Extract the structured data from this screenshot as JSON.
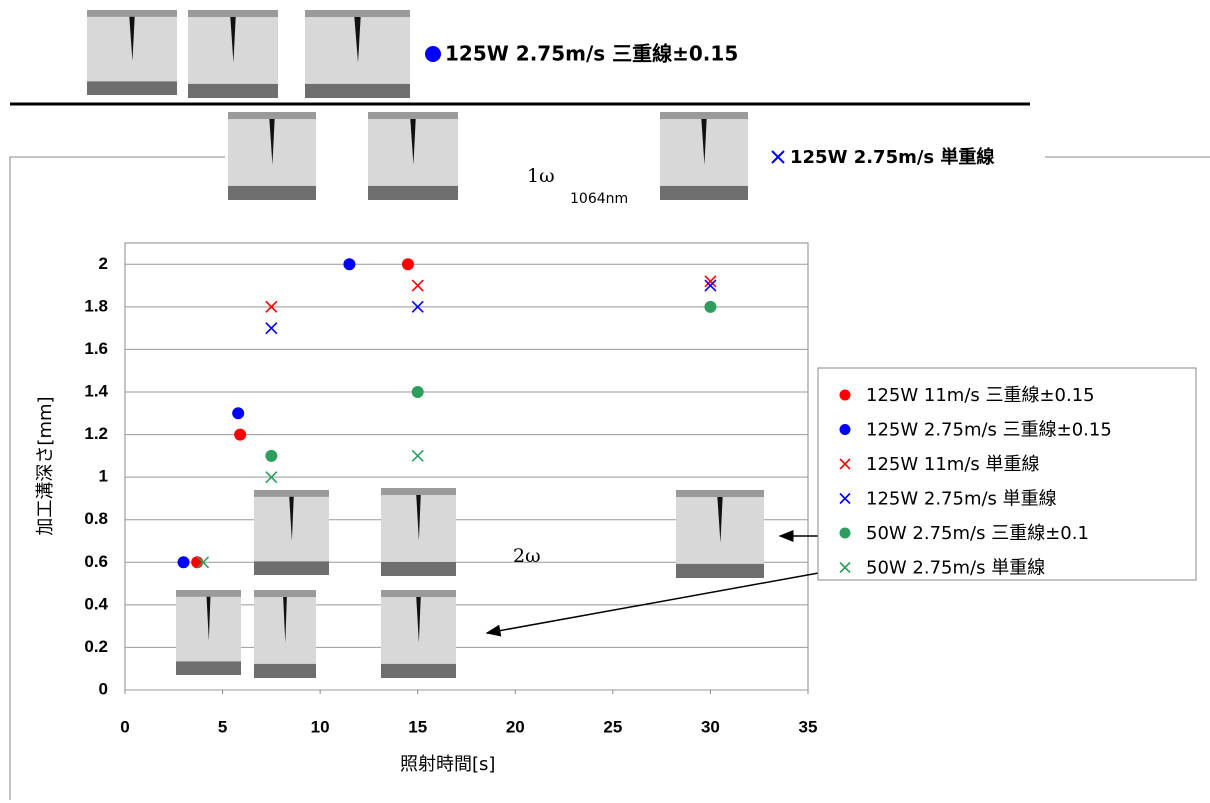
{
  "chart_data": {
    "type": "scatter",
    "x_label": "照射時間[s]",
    "y_label": "加工溝深さ[mm]",
    "xlim": [
      0,
      35
    ],
    "xticks": [
      0,
      5,
      10,
      15,
      20,
      25,
      30,
      35
    ],
    "ylim": [
      0,
      2.1
    ],
    "yticks": [
      0,
      0.2,
      0.4,
      0.6,
      0.8,
      1,
      1.2,
      1.4,
      1.6,
      1.8,
      2
    ],
    "grid": true,
    "legend": "right",
    "series": [
      {
        "name": "125W 11m/s 三重線±0.15",
        "color": "#ff0000",
        "marker": "o",
        "x": [
          3.7,
          5.9,
          14.5
        ],
        "values": [
          0.6,
          1.2,
          2
        ]
      },
      {
        "name": "125W 2.75m/s 三重線±0.15",
        "color": "#0000ff",
        "marker": "o",
        "x": [
          3,
          5.8,
          11.5
        ],
        "values": [
          0.6,
          1.3,
          2
        ]
      },
      {
        "name": "125W 11m/s 単重線",
        "color": "#ff0000",
        "marker": "x",
        "x": [
          7.5,
          15,
          30
        ],
        "values": [
          1.8,
          1.9,
          1.92
        ]
      },
      {
        "name": "125W 2.75m/s 単重線",
        "color": "#0000ff",
        "marker": "x",
        "x": [
          7.5,
          15,
          30
        ],
        "values": [
          1.7,
          1.8,
          1.9
        ]
      },
      {
        "name": "50W 2.75m/s 三重線±0.1",
        "color": "#2e9e5e",
        "marker": "o",
        "x": [
          7.5,
          15,
          30
        ],
        "values": [
          1.1,
          1.4,
          1.8
        ]
      },
      {
        "name": "50W 2.75m/s 単重線",
        "color": "#2e9e5e",
        "marker": "x",
        "x": [
          4,
          7.5,
          15
        ],
        "values": [
          0.6,
          1,
          1.1
        ]
      }
    ],
    "annotations": [
      "125W 2.75m/s 三重線±0.15",
      "125W 2.75m/s 単重線",
      "1ω",
      "1064nm",
      "2ω"
    ]
  }
}
